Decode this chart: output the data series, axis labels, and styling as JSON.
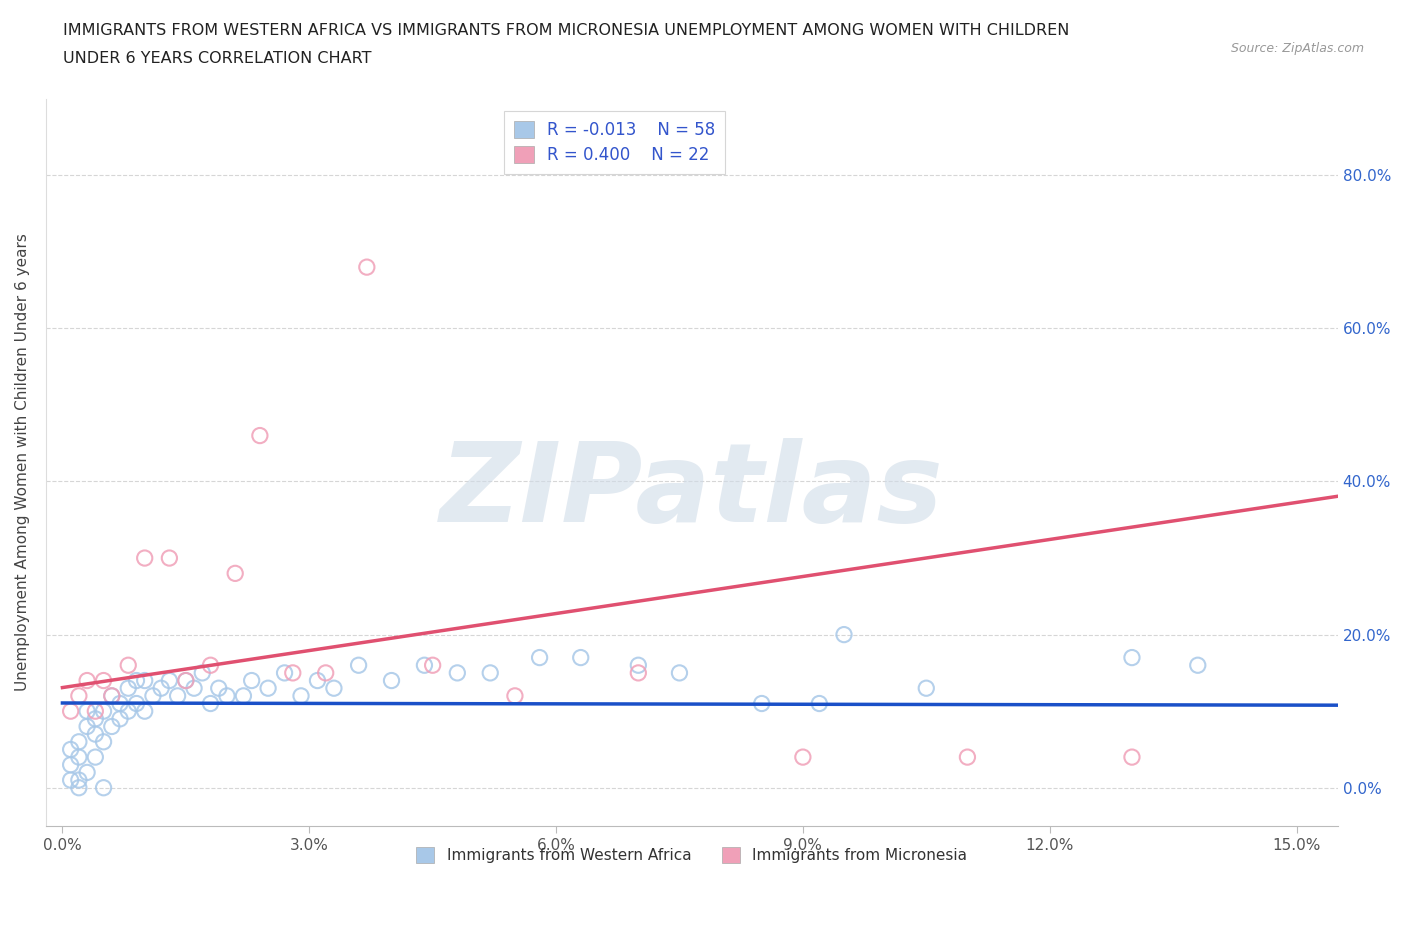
{
  "title_line1": "IMMIGRANTS FROM WESTERN AFRICA VS IMMIGRANTS FROM MICRONESIA UNEMPLOYMENT AMONG WOMEN WITH CHILDREN",
  "title_line2": "UNDER 6 YEARS CORRELATION CHART",
  "source": "Source: ZipAtlas.com",
  "ylabel": "Unemployment Among Women with Children Under 6 years",
  "watermark": "ZIPatlas",
  "xlim": [
    -0.002,
    0.155
  ],
  "ylim": [
    -0.05,
    0.9
  ],
  "xtick_vals": [
    0.0,
    0.03,
    0.06,
    0.09,
    0.12,
    0.15
  ],
  "xtick_labels": [
    "0.0%",
    "3.0%",
    "6.0%",
    "9.0%",
    "12.0%",
    "15.0%"
  ],
  "ytick_vals": [
    0.0,
    0.2,
    0.4,
    0.6,
    0.8
  ],
  "ytick_labels": [
    "0.0%",
    "20.0%",
    "40.0%",
    "60.0%",
    "80.0%"
  ],
  "legend_labels": [
    "Immigrants from Western Africa",
    "Immigrants from Micronesia"
  ],
  "r_western": -0.013,
  "n_western": 58,
  "r_micronesia": 0.4,
  "n_micronesia": 22,
  "color_western": "#a8c8e8",
  "color_micronesia": "#f0a0b8",
  "line_color_western": "#1a50c8",
  "line_color_micronesia": "#e05070",
  "wa_x": [
    0.001,
    0.001,
    0.001,
    0.002,
    0.002,
    0.002,
    0.002,
    0.003,
    0.003,
    0.003,
    0.004,
    0.004,
    0.004,
    0.005,
    0.005,
    0.005,
    0.006,
    0.006,
    0.007,
    0.007,
    0.008,
    0.008,
    0.009,
    0.009,
    0.01,
    0.01,
    0.011,
    0.012,
    0.013,
    0.014,
    0.015,
    0.016,
    0.017,
    0.018,
    0.019,
    0.02,
    0.022,
    0.023,
    0.025,
    0.027,
    0.029,
    0.031,
    0.033,
    0.036,
    0.04,
    0.044,
    0.048,
    0.052,
    0.058,
    0.063,
    0.07,
    0.075,
    0.085,
    0.092,
    0.095,
    0.105,
    0.13,
    0.138
  ],
  "wa_y": [
    0.05,
    0.03,
    0.01,
    0.06,
    0.04,
    0.01,
    0.0,
    0.08,
    0.1,
    0.02,
    0.07,
    0.09,
    0.04,
    0.06,
    0.0,
    0.1,
    0.08,
    0.12,
    0.09,
    0.11,
    0.1,
    0.13,
    0.11,
    0.14,
    0.1,
    0.14,
    0.12,
    0.13,
    0.14,
    0.12,
    0.14,
    0.13,
    0.15,
    0.11,
    0.13,
    0.12,
    0.12,
    0.14,
    0.13,
    0.15,
    0.12,
    0.14,
    0.13,
    0.16,
    0.14,
    0.16,
    0.15,
    0.15,
    0.17,
    0.17,
    0.16,
    0.15,
    0.11,
    0.11,
    0.2,
    0.13,
    0.17,
    0.16
  ],
  "mc_x": [
    0.001,
    0.002,
    0.003,
    0.004,
    0.005,
    0.006,
    0.008,
    0.01,
    0.013,
    0.015,
    0.018,
    0.021,
    0.024,
    0.028,
    0.032,
    0.037,
    0.045,
    0.055,
    0.07,
    0.09,
    0.11,
    0.13
  ],
  "mc_y": [
    0.1,
    0.12,
    0.14,
    0.1,
    0.14,
    0.12,
    0.16,
    0.3,
    0.3,
    0.14,
    0.16,
    0.28,
    0.46,
    0.15,
    0.15,
    0.68,
    0.16,
    0.12,
    0.15,
    0.04,
    0.04,
    0.04
  ],
  "background_color": "#ffffff",
  "grid_color": "#cccccc"
}
